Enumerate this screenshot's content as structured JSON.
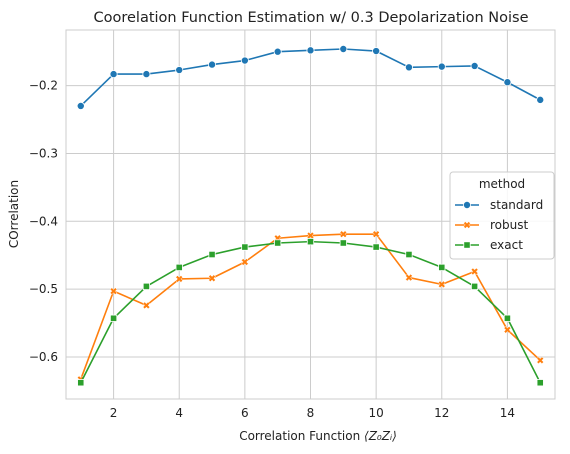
{
  "chart_data": {
    "type": "line",
    "title": "Coorelation Function Estimation w/ 0.3 Depolarization Noise",
    "xlabel_prefix": "Correlation Function ",
    "xlabel_math": "⟨Z₀Zᵢ⟩",
    "ylabel": "COrrelation",
    "xlim": [
      0.55,
      15.45
    ],
    "ylim": [
      -0.662,
      -0.118
    ],
    "x_ticks": [
      2,
      4,
      6,
      8,
      10,
      12,
      14
    ],
    "x_tick_labels": [
      "2",
      "4",
      "6",
      "8",
      "10",
      "12",
      "14"
    ],
    "y_ticks": [
      -0.2,
      -0.3,
      -0.4,
      -0.5,
      -0.6
    ],
    "y_tick_labels": [
      "−0.2",
      "−0.3",
      "−0.4",
      "−0.5",
      "−0.6"
    ],
    "grid": true,
    "legend_title": "method",
    "legend_position": "center-right",
    "x": [
      1,
      2,
      3,
      4,
      5,
      6,
      7,
      8,
      9,
      10,
      11,
      12,
      13,
      14,
      15
    ],
    "series": [
      {
        "name": "standard",
        "color": "#1f77b4",
        "marker": "circle",
        "values": [
          -0.23,
          -0.183,
          -0.183,
          -0.177,
          -0.169,
          -0.163,
          -0.15,
          -0.148,
          -0.146,
          -0.149,
          -0.173,
          -0.172,
          -0.171,
          -0.195,
          -0.221
        ]
      },
      {
        "name": "robust",
        "color": "#ff7f0e",
        "marker": "x",
        "values": [
          -0.633,
          -0.503,
          -0.524,
          -0.485,
          -0.484,
          -0.46,
          -0.425,
          -0.421,
          -0.419,
          -0.419,
          -0.483,
          -0.493,
          -0.474,
          -0.56,
          -0.605
        ]
      },
      {
        "name": "exact",
        "color": "#2ca02c",
        "marker": "square",
        "values": [
          -0.638,
          -0.543,
          -0.496,
          -0.468,
          -0.449,
          -0.438,
          -0.432,
          -0.43,
          -0.432,
          -0.438,
          -0.449,
          -0.468,
          -0.496,
          -0.543,
          -0.638
        ]
      }
    ]
  }
}
